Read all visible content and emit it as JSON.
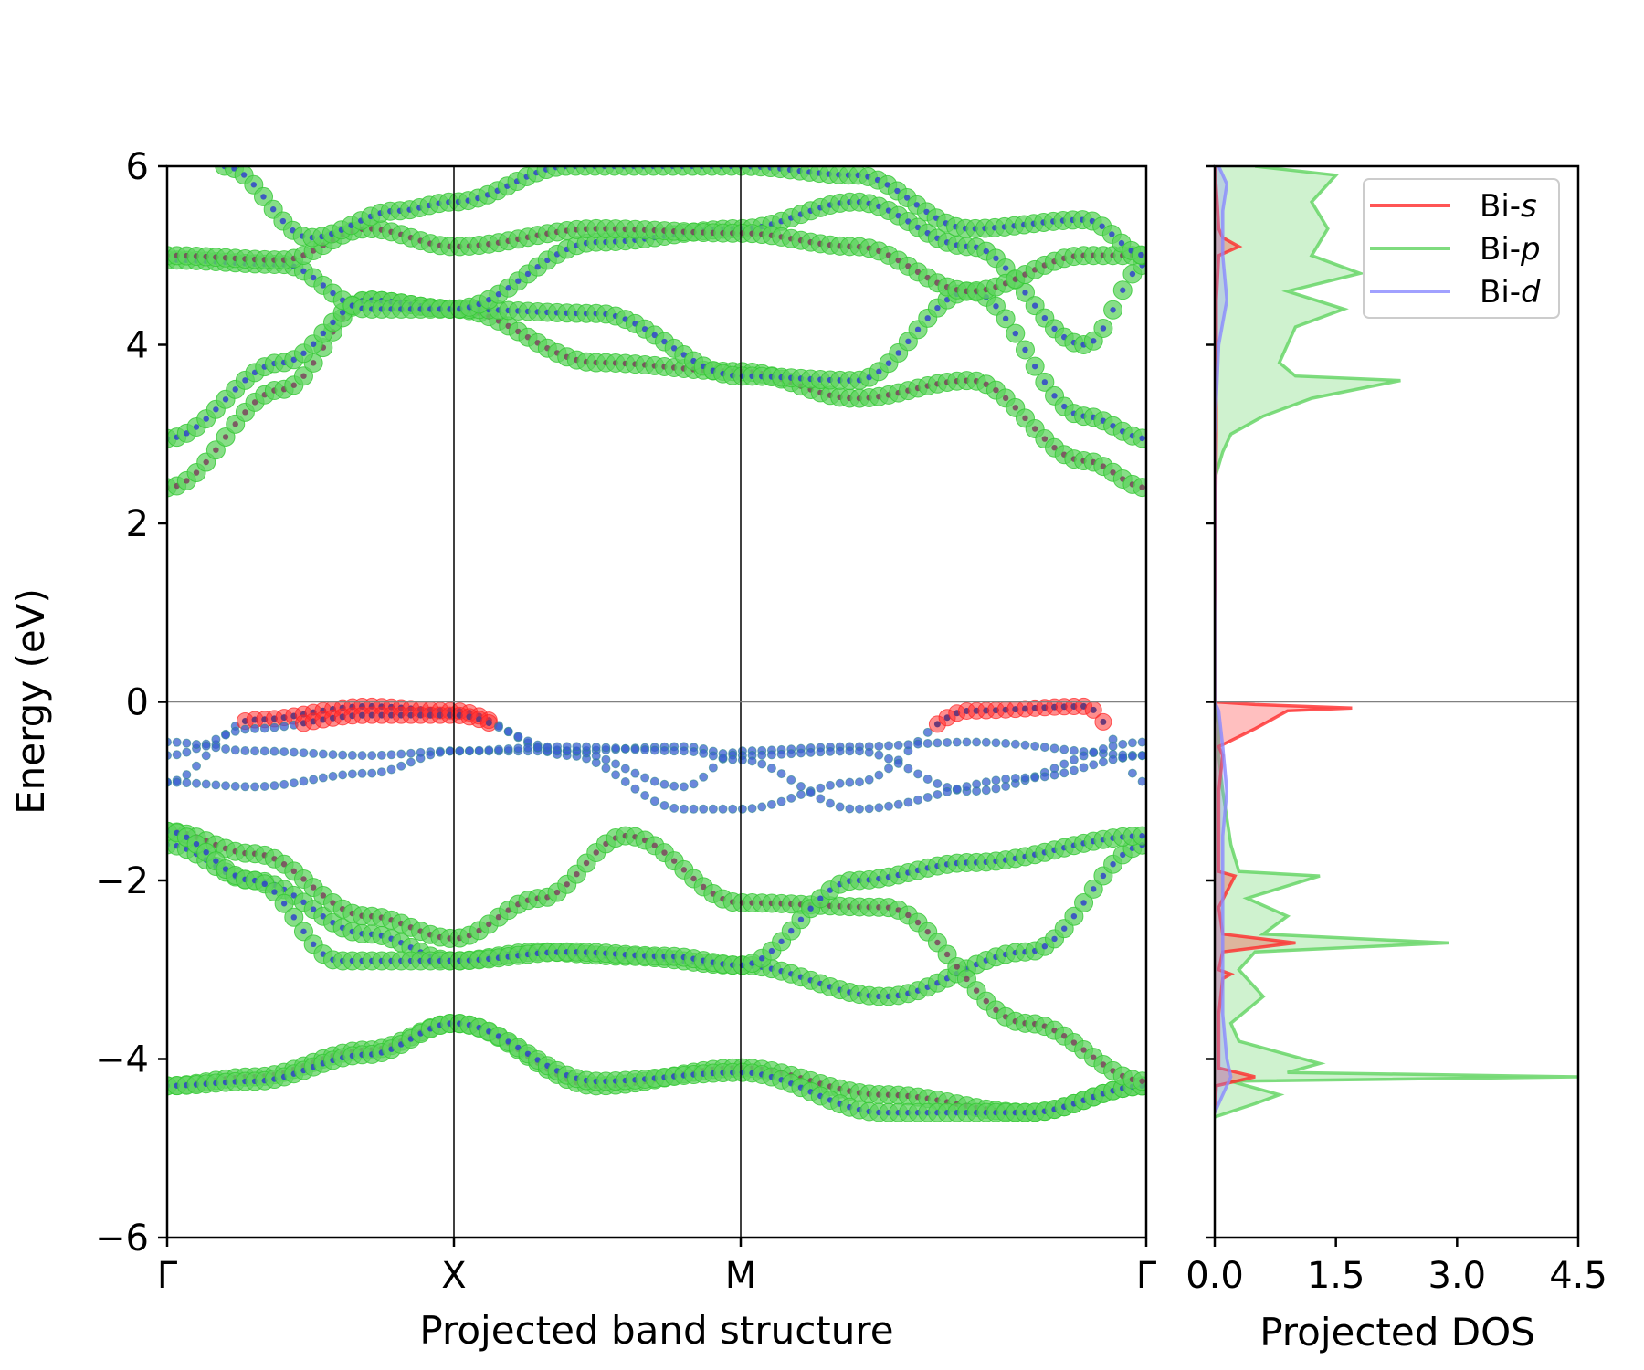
{
  "chart_data": [
    {
      "type": "scatter",
      "name": "projected-band-structure",
      "xlabel": "Projected band structure",
      "ylabel": "Energy (eV)",
      "ylim": [
        -6,
        6
      ],
      "yticks": [
        -6,
        -4,
        -2,
        0,
        2,
        4,
        6
      ],
      "ytick_labels": [
        "−6",
        "−4",
        "−2",
        "0",
        "2",
        "4",
        "6"
      ],
      "kpoints": [
        {
          "label": "Γ",
          "pos": 0
        },
        {
          "label": "X",
          "pos": 1
        },
        {
          "label": "M",
          "pos": 2
        },
        {
          "label": "Γ",
          "pos": 3.414
        }
      ],
      "xlim": [
        0,
        3.414
      ],
      "fermi_level": 0,
      "bands": [
        {
          "k": [
            0,
            0.3,
            0.7,
            1,
            1.5,
            2,
            2.5,
            3,
            3.414
          ],
          "E": [
            -4.3,
            -4.2,
            -3.9,
            -3.6,
            -4.3,
            -4.1,
            -4.4,
            -4.6,
            -4.3
          ]
        },
        {
          "k": [
            0,
            0.3,
            0.7,
            1,
            1.5,
            2,
            2.5,
            3,
            3.414
          ],
          "E": [
            -4.3,
            -4.25,
            -3.95,
            -3.6,
            -4.25,
            -4.15,
            -4.6,
            -4.6,
            -4.3
          ]
        },
        {
          "k": [
            0,
            0.3,
            0.7,
            1,
            1.3,
            1.6,
            2,
            2.5,
            3,
            3.414
          ],
          "E": [
            -1.6,
            -2.0,
            -2.6,
            -2.9,
            -2.8,
            -2.85,
            -2.95,
            -3.3,
            -2.8,
            -1.6
          ]
        },
        {
          "k": [
            0,
            0.3,
            0.7,
            1,
            1.3,
            1.6,
            2,
            2.5,
            3,
            3.414
          ],
          "E": [
            -1.45,
            -1.7,
            -2.4,
            -2.65,
            -2.2,
            -1.5,
            -2.25,
            -2.3,
            -3.6,
            -4.25
          ]
        },
        {
          "k": [
            0,
            0.3,
            0.6,
            1,
            1.4,
            1.75,
            2,
            2.4,
            2.8,
            3.414
          ],
          "E": [
            -1.45,
            -2.0,
            -2.9,
            -2.9,
            -2.8,
            -2.85,
            -2.95,
            -2.0,
            -1.8,
            -1.5
          ]
        },
        {
          "k": [
            0,
            0.3,
            0.7,
            1,
            1.4,
            1.8,
            2,
            2.4,
            2.8,
            3.2,
            3.414
          ],
          "E": [
            -0.9,
            -0.2,
            -0.05,
            -0.1,
            -0.6,
            -1.2,
            -1.2,
            -0.9,
            -0.1,
            -0.05,
            -0.9
          ]
        },
        {
          "k": [
            0,
            0.3,
            0.7,
            1,
            1.4,
            1.8,
            2,
            2.4,
            2.8,
            3.414
          ],
          "E": [
            -0.6,
            -0.3,
            -0.15,
            -0.15,
            -0.55,
            -0.95,
            -0.55,
            -0.5,
            -0.45,
            -0.6
          ]
        },
        {
          "k": [
            0,
            0.3,
            0.7,
            1,
            1.4,
            1.8,
            2,
            2.4,
            2.8,
            3.414
          ],
          "E": [
            -0.45,
            -0.55,
            -0.6,
            -0.55,
            -0.55,
            -0.5,
            -0.6,
            -0.55,
            -1.0,
            -0.45
          ]
        },
        {
          "k": [
            0,
            0.3,
            0.7,
            1,
            1.4,
            1.8,
            2,
            2.4,
            3.0,
            3.414
          ],
          "E": [
            -0.9,
            -0.95,
            -0.8,
            -0.55,
            -0.5,
            -0.55,
            -0.65,
            -1.2,
            -0.85,
            -0.6
          ]
        },
        {
          "k": [
            0,
            0.4,
            0.7,
            1,
            1.5,
            2,
            2.4,
            2.8,
            3.2,
            3.414
          ],
          "E": [
            2.4,
            3.5,
            4.5,
            4.4,
            3.8,
            3.7,
            3.4,
            3.6,
            2.7,
            2.4
          ]
        },
        {
          "k": [
            0,
            0.4,
            0.7,
            1,
            1.5,
            2,
            2.4,
            2.8,
            3.2,
            3.414
          ],
          "E": [
            2.95,
            3.8,
            4.5,
            4.4,
            4.35,
            3.65,
            3.6,
            4.6,
            3.2,
            2.95
          ]
        },
        {
          "k": [
            0,
            0.4,
            0.7,
            1,
            1.5,
            2,
            2.4,
            2.8,
            3.2,
            3.414
          ],
          "E": [
            4.95,
            4.9,
            4.4,
            4.4,
            5.15,
            5.3,
            5.6,
            5.1,
            4.0,
            4.9
          ]
        },
        {
          "k": [
            0,
            0.4,
            0.7,
            1,
            1.5,
            2,
            2.4,
            2.8,
            3.2,
            3.414
          ],
          "E": [
            5.0,
            4.95,
            5.3,
            5.1,
            5.3,
            5.25,
            5.1,
            4.6,
            5.0,
            5.0
          ]
        },
        {
          "k": [
            0.2,
            0.5,
            0.8,
            1,
            1.4,
            2,
            2.4,
            2.8,
            3.2,
            3.414
          ],
          "E": [
            6.0,
            5.2,
            5.5,
            5.6,
            6.0,
            6.0,
            5.9,
            5.3,
            5.4,
            5.0
          ]
        }
      ]
    },
    {
      "type": "line",
      "name": "projected-dos",
      "xlabel": "Projected DOS",
      "xlim": [
        0,
        4.5
      ],
      "xticks": [
        0.0,
        1.5,
        3.0,
        4.5
      ],
      "xtick_labels": [
        "0.0",
        "1.5",
        "3.0",
        "4.5"
      ],
      "ylim": [
        -6,
        6
      ],
      "legend": {
        "placement": "top-right",
        "entries": [
          {
            "prefix": "Bi-",
            "orbital": "s",
            "color": "#ff2a2a"
          },
          {
            "prefix": "Bi-",
            "orbital": "p",
            "color": "#5fd35f"
          },
          {
            "prefix": "Bi-",
            "orbital": "d",
            "color": "#8a8aff"
          }
        ]
      },
      "series": [
        {
          "name": "Bi-s",
          "color": "#ff2a2a",
          "E": [
            -4.6,
            -4.3,
            -4.2,
            -4.1,
            -3.5,
            -3.1,
            -3.05,
            -3.0,
            -2.8,
            -2.7,
            -2.6,
            -2.3,
            -1.95,
            -1.9,
            -1.5,
            -1.0,
            -0.6,
            -0.5,
            -0.3,
            -0.1,
            -0.07,
            -0.03,
            0.0,
            1.0,
            3.0,
            4.5,
            5.0,
            5.1,
            5.2,
            5.3,
            5.6,
            6.0
          ],
          "dos": [
            0.0,
            0.02,
            0.5,
            0.05,
            0.05,
            0.1,
            0.2,
            0.05,
            0.1,
            1.0,
            0.1,
            0.05,
            0.25,
            0.05,
            0.05,
            0.05,
            0.1,
            0.05,
            0.5,
            0.9,
            1.7,
            0.5,
            0.0,
            0.0,
            0.02,
            0.02,
            0.05,
            0.3,
            0.1,
            0.05,
            0.03,
            0.0
          ]
        },
        {
          "name": "Bi-p",
          "color": "#5fd35f",
          "E": [
            -4.65,
            -4.5,
            -4.4,
            -4.25,
            -4.2,
            -4.15,
            -4.05,
            -3.8,
            -3.6,
            -3.3,
            -3.0,
            -2.8,
            -2.7,
            -2.6,
            -2.4,
            -2.2,
            -1.95,
            -1.9,
            -1.6,
            -1.0,
            -0.6,
            -0.3,
            0.0,
            2.5,
            2.8,
            3.0,
            3.2,
            3.4,
            3.6,
            3.65,
            3.8,
            4.0,
            4.2,
            4.4,
            4.6,
            4.8,
            5.0,
            5.3,
            5.6,
            5.9,
            6.0
          ],
          "dos": [
            0.0,
            0.5,
            0.8,
            0.2,
            4.5,
            0.9,
            1.3,
            0.3,
            0.2,
            0.6,
            0.3,
            0.5,
            2.9,
            0.6,
            0.9,
            0.4,
            1.3,
            0.3,
            0.2,
            0.1,
            0.05,
            0.05,
            0.0,
            0.0,
            0.1,
            0.2,
            0.6,
            1.2,
            2.3,
            1.0,
            0.8,
            0.9,
            1.0,
            1.6,
            0.9,
            1.8,
            1.2,
            1.4,
            1.2,
            1.5,
            0.5
          ]
        },
        {
          "name": "Bi-d",
          "color": "#8a8aff",
          "E": [
            -4.6,
            -4.2,
            -4.0,
            -3.5,
            -3.0,
            -2.5,
            -2.0,
            -1.5,
            -1.0,
            -0.5,
            -0.1,
            0.0,
            3.0,
            4.0,
            4.5,
            5.0,
            5.5,
            5.8,
            6.0
          ],
          "dos": [
            0.0,
            0.2,
            0.15,
            0.1,
            0.1,
            0.1,
            0.1,
            0.1,
            0.15,
            0.1,
            0.05,
            0.0,
            0.0,
            0.05,
            0.15,
            0.1,
            0.1,
            0.15,
            0.05
          ]
        }
      ]
    }
  ]
}
